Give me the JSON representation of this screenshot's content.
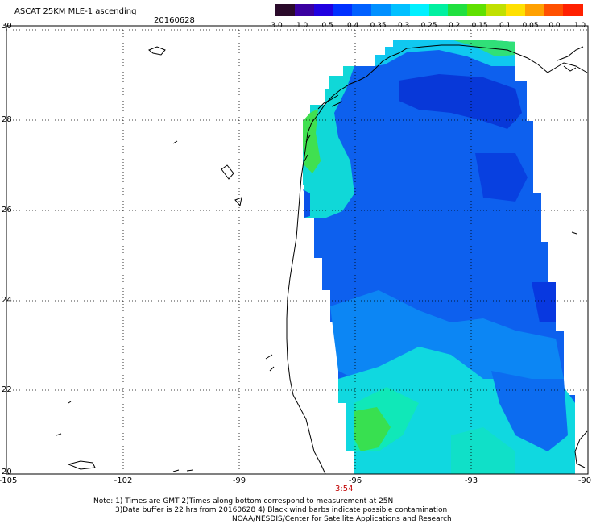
{
  "header": {
    "title": "ASCAT 25KM MLE-1 ascending",
    "date": "20160628"
  },
  "colorbar": {
    "labels": [
      "-3.0",
      "-1.0",
      "-0.5",
      "-0.4",
      "-0.35",
      "-0.3",
      "-0.25",
      "-0.2",
      "-0.15",
      "-0.1",
      "-0.05",
      "0.0",
      "1.0"
    ],
    "colors": [
      "#2a0a2a",
      "#3a00a0",
      "#2000e0",
      "#0030ff",
      "#0060ff",
      "#0090ff",
      "#00c0ff",
      "#00f0ff",
      "#00f0a0",
      "#20e040",
      "#60e000",
      "#c0e000",
      "#ffe000",
      "#ffa000",
      "#ff5000",
      "#ff2000"
    ]
  },
  "axes": {
    "lat_labels": [
      "30",
      "28",
      "26",
      "24",
      "22",
      "20"
    ],
    "lon_labels": [
      "-105",
      "-102",
      "-99",
      "-96",
      "-93",
      "-90"
    ]
  },
  "time_label": "3:54",
  "notes": [
    "Note: 1) Times are GMT 2)Times along bottom correspond to measurement at 25N",
    "3)Data buffer is 22 hrs from 20160628 4) Black wind barbs indicate possible contamination",
    "NOAA/NESDIS/Center for Satellite Applications and Research"
  ],
  "field_colors": {
    "deep_blue": "#0a3fe0",
    "blue": "#0d5ef0",
    "sky": "#0b8cf5",
    "cyan": "#10d8e8",
    "aqua": "#10e8c0",
    "green": "#30e060",
    "light_green": "#60e040"
  }
}
